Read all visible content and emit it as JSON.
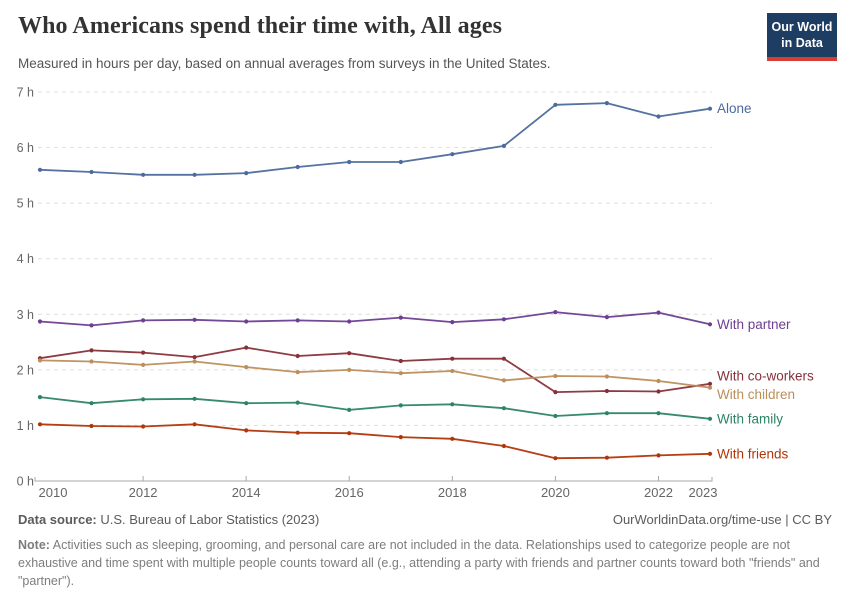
{
  "header": {
    "title": "Who Americans spend their time with, All ages",
    "subtitle": "Measured in hours per day, based on annual averages from surveys in the United States.",
    "logo": {
      "line1": "Our World",
      "line2": "in Data",
      "bg_color": "#1d3d63",
      "accent_color": "#d63e32"
    }
  },
  "chart_data": {
    "type": "line",
    "title": "Who Americans spend their time with, All ages",
    "xlabel": "",
    "ylabel": "hours per day",
    "x": [
      2010,
      2011,
      2012,
      2013,
      2014,
      2015,
      2016,
      2017,
      2018,
      2019,
      2020,
      2021,
      2022,
      2023
    ],
    "series": [
      {
        "name": "Alone",
        "color": "#4C6A9C",
        "label_dy": 0,
        "values": [
          5.6,
          5.56,
          5.51,
          5.51,
          5.54,
          5.65,
          5.74,
          5.74,
          5.88,
          6.03,
          6.77,
          6.8,
          6.56,
          6.7
        ]
      },
      {
        "name": "With partner",
        "color": "#6D3E91",
        "label_dy": 0,
        "values": [
          2.87,
          2.8,
          2.89,
          2.9,
          2.87,
          2.89,
          2.87,
          2.94,
          2.86,
          2.91,
          3.04,
          2.95,
          3.03,
          2.82
        ]
      },
      {
        "name": "With co-workers",
        "color": "#883039",
        "label_dy": -8,
        "values": [
          2.21,
          2.35,
          2.31,
          2.23,
          2.4,
          2.25,
          2.3,
          2.16,
          2.2,
          2.2,
          1.6,
          1.62,
          1.61,
          1.75
        ]
      },
      {
        "name": "With children",
        "color": "#BC8E5A",
        "label_dy": 7,
        "values": [
          2.17,
          2.15,
          2.09,
          2.15,
          2.05,
          1.96,
          2.0,
          1.94,
          1.98,
          1.81,
          1.89,
          1.88,
          1.8,
          1.68
        ]
      },
      {
        "name": "With family",
        "color": "#2C8465",
        "label_dy": 0,
        "values": [
          1.51,
          1.4,
          1.47,
          1.48,
          1.4,
          1.41,
          1.28,
          1.36,
          1.38,
          1.31,
          1.17,
          1.22,
          1.22,
          1.12
        ]
      },
      {
        "name": "With friends",
        "color": "#B13507",
        "label_dy": 0,
        "values": [
          1.02,
          0.99,
          0.98,
          1.02,
          0.91,
          0.87,
          0.86,
          0.79,
          0.76,
          0.63,
          0.41,
          0.42,
          0.46,
          0.49
        ]
      }
    ],
    "ylim": [
      0,
      7
    ],
    "yticks": [
      0,
      1,
      2,
      3,
      4,
      5,
      6,
      7
    ],
    "ytick_suffix": " h",
    "xticks": [
      2010,
      2012,
      2014,
      2016,
      2018,
      2020,
      2022,
      2023
    ],
    "grid": "horizontal-dashed",
    "legend_position": "end-labels-right",
    "grid_color": "#dddddd",
    "axis_color": "#a8a8a8",
    "tick_label_color": "#666666"
  },
  "footer": {
    "datasource_label": "Data source:",
    "datasource_text": " U.S. Bureau of Labor Statistics (2023)",
    "rights": "OurWorldinData.org/time-use | CC BY",
    "note_label": "Note:",
    "note_text": " Activities such as sleeping, grooming, and personal care are not included in the data. Relationships used to categorize people are not exhaustive and time spent with multiple people counts toward all (e.g., attending a party with friends and partner counts toward both \"friends\" and \"partner\")."
  }
}
